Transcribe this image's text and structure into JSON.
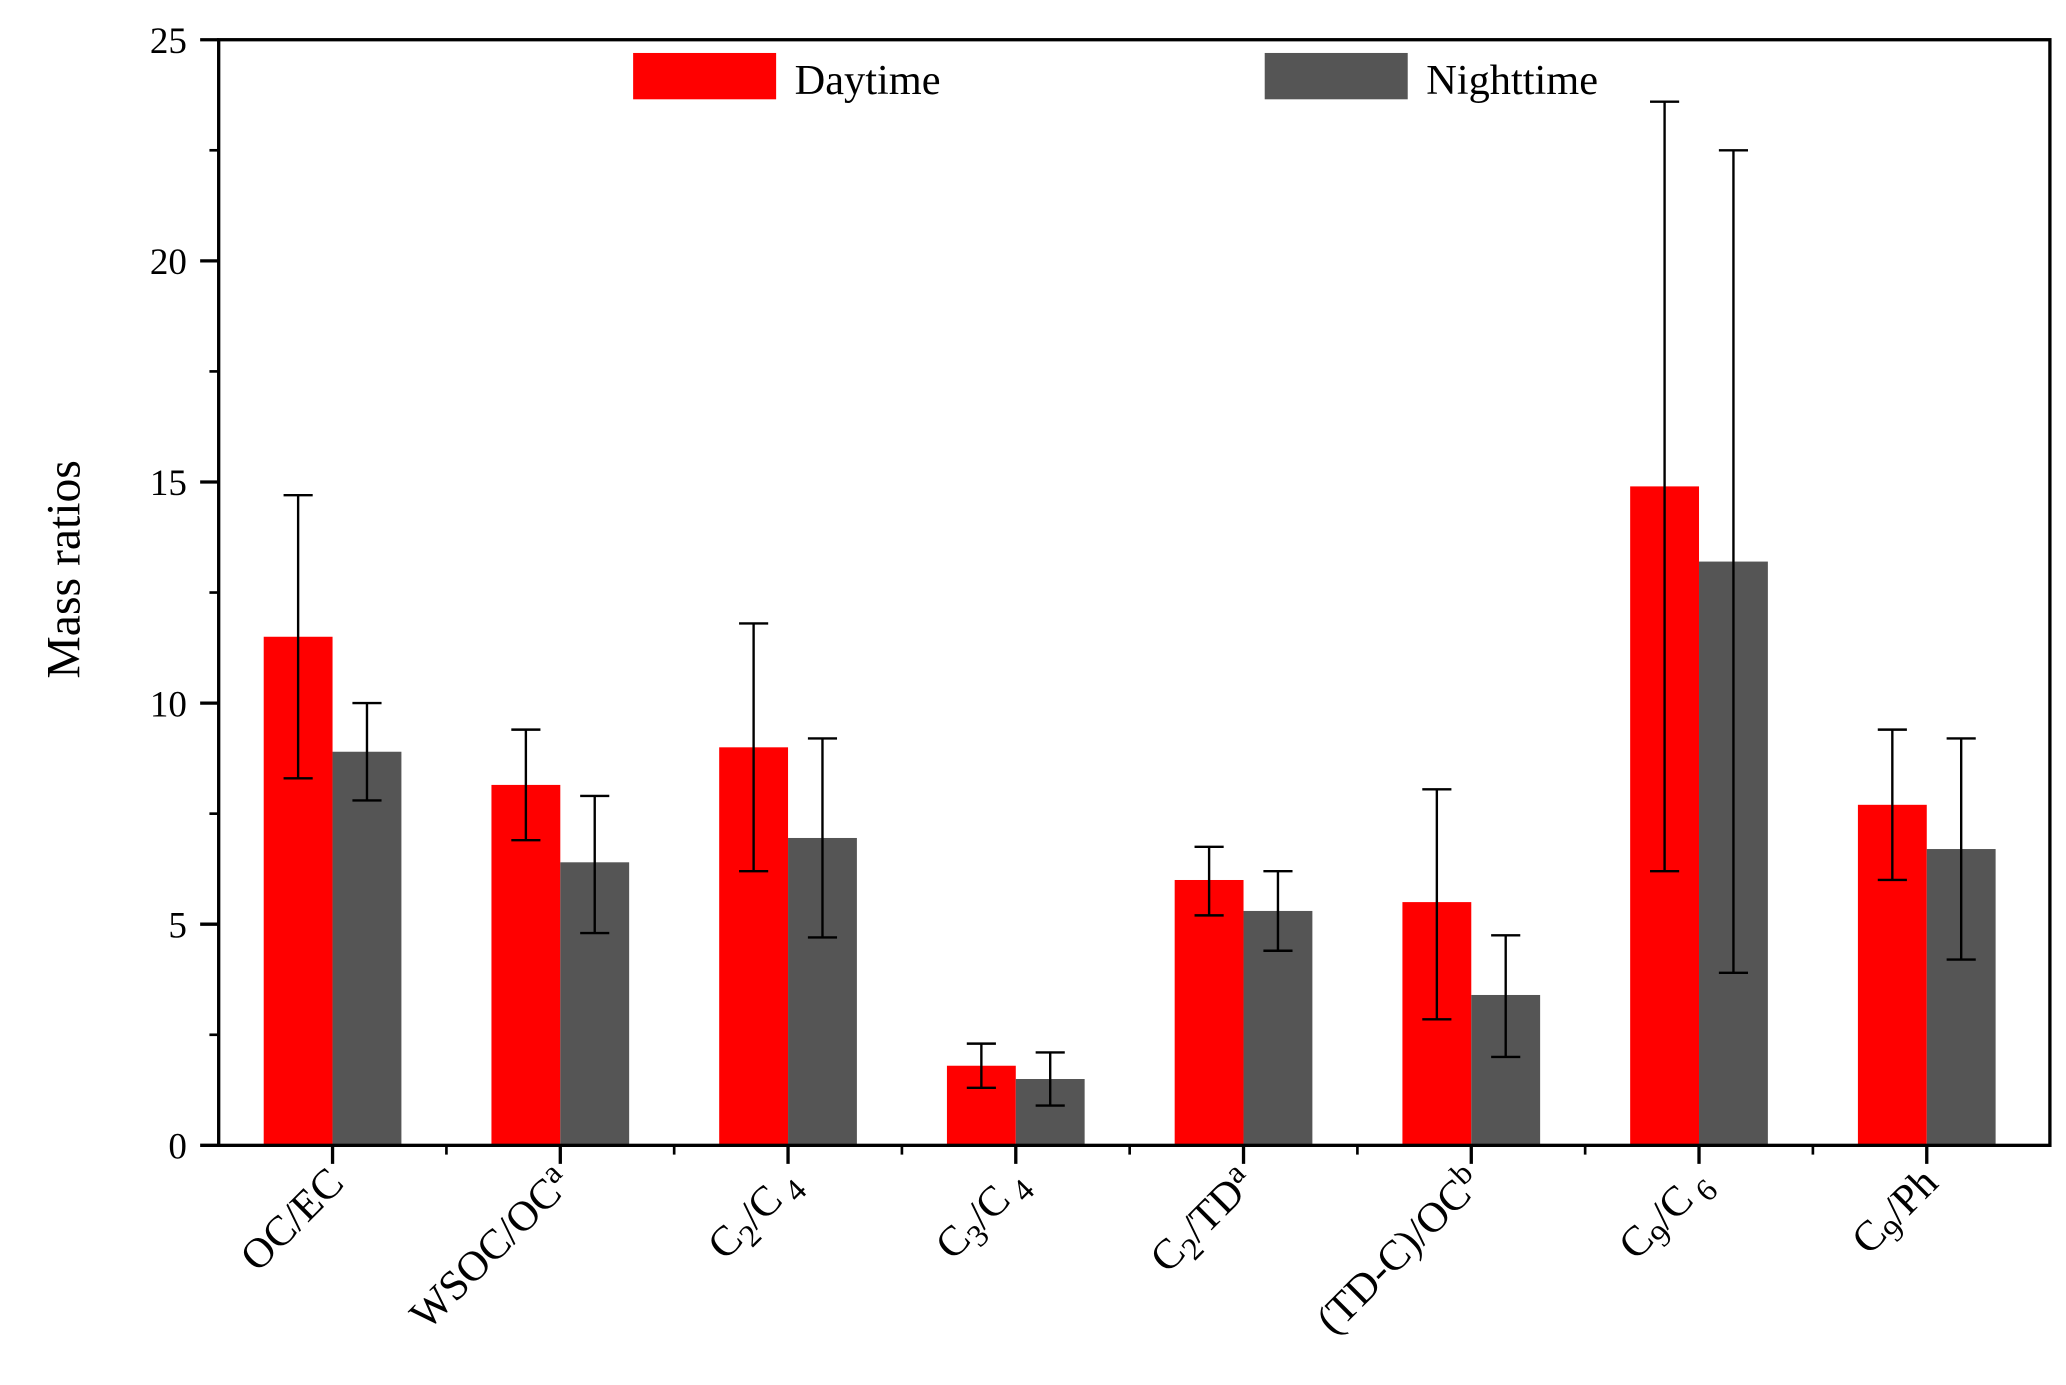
{
  "chart_data": {
    "type": "bar",
    "title": "",
    "xlabel": "",
    "ylabel": "Mass ratios",
    "ylim": [
      0,
      25
    ],
    "yticks": [
      0,
      5,
      10,
      15,
      20,
      25
    ],
    "grid": false,
    "legend_position": "top",
    "categories": [
      [
        {
          "t": "OC/EC"
        }
      ],
      [
        {
          "t": "WSOC/OC"
        },
        {
          "t": "a",
          "sup": true
        }
      ],
      [
        {
          "t": "C"
        },
        {
          "t": "2",
          "sub": true
        },
        {
          "t": "/C"
        },
        {
          "t": " 4",
          "sub": true
        }
      ],
      [
        {
          "t": "C"
        },
        {
          "t": "3",
          "sub": true
        },
        {
          "t": "/C"
        },
        {
          "t": " 4",
          "sub": true
        }
      ],
      [
        {
          "t": "C"
        },
        {
          "t": "2",
          "sub": true
        },
        {
          "t": "/TD"
        },
        {
          "t": "a",
          "sup": true
        }
      ],
      [
        {
          "t": "(TD-C)/OC"
        },
        {
          "t": "b",
          "sup": true
        }
      ],
      [
        {
          "t": "C"
        },
        {
          "t": "9",
          "sub": true
        },
        {
          "t": "/C"
        },
        {
          "t": " 6",
          "sub": true
        }
      ],
      [
        {
          "t": "C"
        },
        {
          "t": "9",
          "sub": true
        },
        {
          "t": "/Ph"
        }
      ]
    ],
    "series": [
      {
        "name": "Daytime",
        "color": "#ff0000",
        "values": [
          11.5,
          8.15,
          9.0,
          1.8,
          6.0,
          5.5,
          14.9,
          7.7
        ],
        "err_upper": [
          14.7,
          9.4,
          11.8,
          2.3,
          6.75,
          8.05,
          23.6,
          9.4
        ],
        "err_lower": [
          8.3,
          6.9,
          6.2,
          1.3,
          5.2,
          2.85,
          6.2,
          6.0
        ]
      },
      {
        "name": "Nighttime",
        "color": "#555555",
        "values": [
          8.9,
          6.4,
          6.95,
          1.5,
          5.3,
          3.4,
          13.2,
          6.7
        ],
        "err_upper": [
          10.0,
          7.9,
          9.2,
          2.1,
          6.2,
          4.75,
          22.5,
          9.2
        ],
        "err_lower": [
          7.8,
          4.8,
          4.7,
          0.9,
          4.4,
          2.0,
          3.9,
          4.2
        ]
      }
    ]
  }
}
